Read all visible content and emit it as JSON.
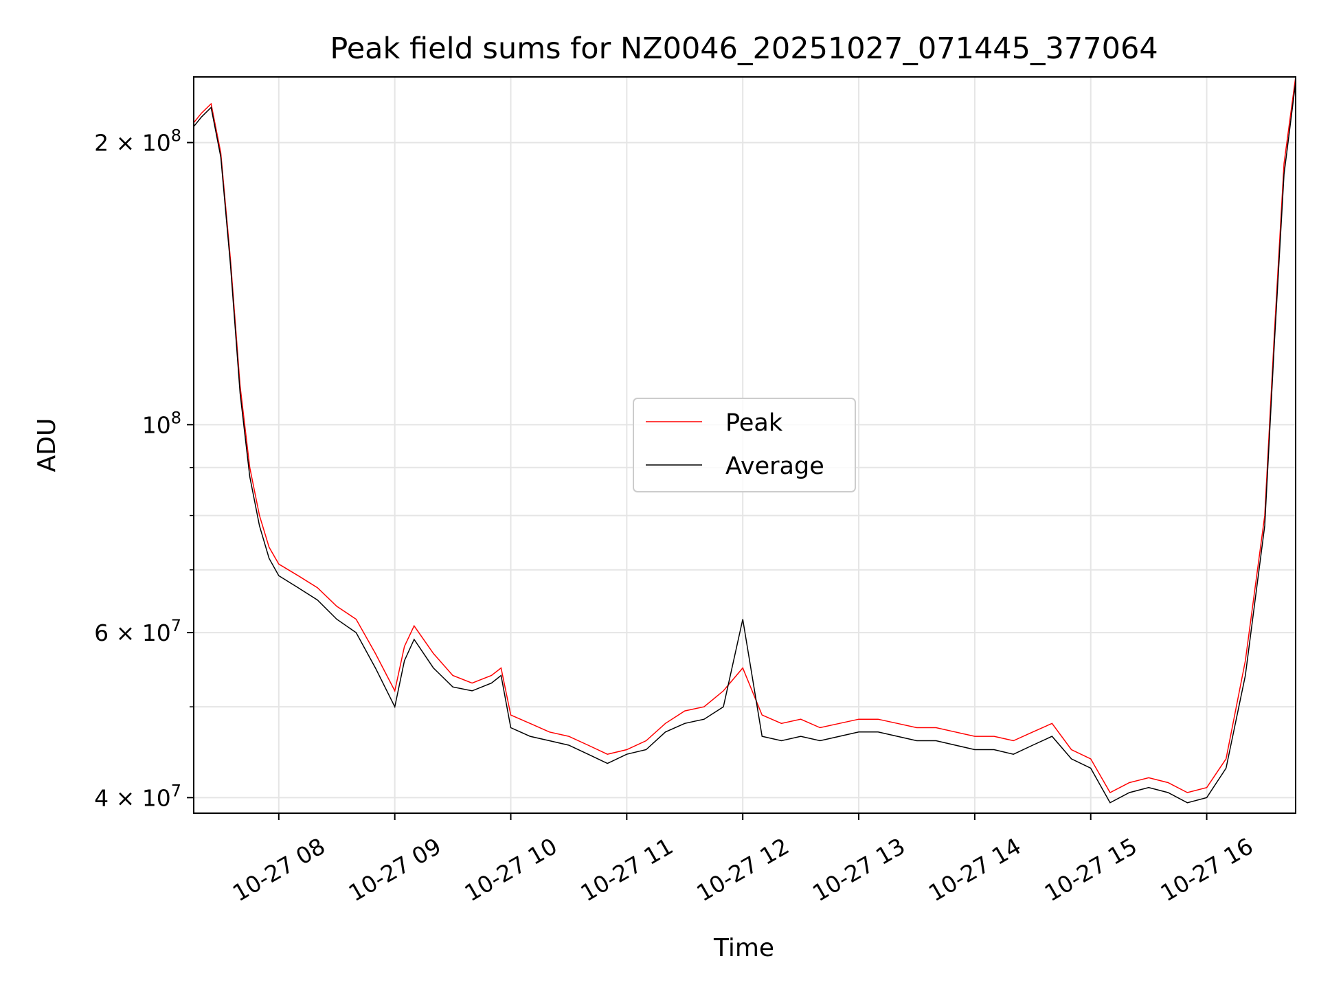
{
  "chart_data": {
    "type": "line",
    "title": "Peak field sums for NZ0046_20251027_071445_377064",
    "xlabel": "Time",
    "ylabel": "ADU",
    "y_scale": "log",
    "ylim": [
      38500000,
      235000000
    ],
    "xlim": [
      "10-27 07:16",
      "10-27 16:46"
    ],
    "x_ticks": [
      "10-27 08",
      "10-27 09",
      "10-27 10",
      "10-27 11",
      "10-27 12",
      "10-27 13",
      "10-27 14",
      "10-27 15",
      "10-27 16"
    ],
    "y_ticks": [
      {
        "value": 40000000,
        "mantissa": "4",
        "exp": "7"
      },
      {
        "value": 60000000,
        "mantissa": "6",
        "exp": "7"
      },
      {
        "value": 100000000,
        "mantissa": "",
        "exp": "8"
      },
      {
        "value": 200000000,
        "mantissa": "2",
        "exp": "8"
      }
    ],
    "grid": true,
    "legend_position": "center",
    "colors": {
      "peak": "#ff0000",
      "average": "#000000"
    },
    "series": [
      {
        "name": "Peak",
        "x": [
          "10-27 07:16",
          "10-27 07:20",
          "10-27 07:25",
          "10-27 07:30",
          "10-27 07:35",
          "10-27 07:40",
          "10-27 07:45",
          "10-27 07:50",
          "10-27 07:55",
          "10-27 08:00",
          "10-27 08:10",
          "10-27 08:20",
          "10-27 08:30",
          "10-27 08:40",
          "10-27 08:50",
          "10-27 09:00",
          "10-27 09:05",
          "10-27 09:10",
          "10-27 09:20",
          "10-27 09:30",
          "10-27 09:40",
          "10-27 09:50",
          "10-27 09:55",
          "10-27 10:00",
          "10-27 10:10",
          "10-27 10:20",
          "10-27 10:30",
          "10-27 10:40",
          "10-27 10:50",
          "10-27 11:00",
          "10-27 11:10",
          "10-27 11:20",
          "10-27 11:30",
          "10-27 11:40",
          "10-27 11:50",
          "10-27 12:00",
          "10-27 12:10",
          "10-27 12:20",
          "10-27 12:30",
          "10-27 12:40",
          "10-27 12:50",
          "10-27 13:00",
          "10-27 13:10",
          "10-27 13:20",
          "10-27 13:30",
          "10-27 13:40",
          "10-27 13:50",
          "10-27 14:00",
          "10-27 14:10",
          "10-27 14:20",
          "10-27 14:30",
          "10-27 14:40",
          "10-27 14:50",
          "10-27 15:00",
          "10-27 15:10",
          "10-27 15:20",
          "10-27 15:30",
          "10-27 15:40",
          "10-27 15:50",
          "10-27 16:00",
          "10-27 16:10",
          "10-27 16:20",
          "10-27 16:30",
          "10-27 16:35",
          "10-27 16:40",
          "10-27 16:46"
        ],
        "y": [
          210000000,
          215000000,
          220000000,
          195000000,
          150000000,
          110000000,
          90000000,
          80000000,
          74000000,
          71000000,
          69000000,
          67000000,
          64000000,
          62000000,
          57000000,
          52000000,
          58000000,
          61000000,
          57000000,
          54000000,
          53000000,
          54000000,
          55000000,
          49000000,
          48000000,
          47000000,
          46500000,
          45500000,
          44500000,
          45000000,
          46000000,
          48000000,
          49500000,
          50000000,
          52000000,
          55000000,
          49000000,
          48000000,
          48500000,
          47500000,
          48000000,
          48500000,
          48500000,
          48000000,
          47500000,
          47500000,
          47000000,
          46500000,
          46500000,
          46000000,
          47000000,
          48000000,
          45000000,
          44000000,
          40500000,
          41500000,
          42000000,
          41500000,
          40500000,
          41000000,
          44000000,
          56000000,
          80000000,
          125000000,
          190000000,
          235000000
        ]
      },
      {
        "name": "Average",
        "x": [
          "10-27 07:16",
          "10-27 07:20",
          "10-27 07:25",
          "10-27 07:30",
          "10-27 07:35",
          "10-27 07:40",
          "10-27 07:45",
          "10-27 07:50",
          "10-27 07:55",
          "10-27 08:00",
          "10-27 08:10",
          "10-27 08:20",
          "10-27 08:30",
          "10-27 08:40",
          "10-27 08:50",
          "10-27 09:00",
          "10-27 09:05",
          "10-27 09:10",
          "10-27 09:20",
          "10-27 09:30",
          "10-27 09:40",
          "10-27 09:50",
          "10-27 09:55",
          "10-27 10:00",
          "10-27 10:10",
          "10-27 10:20",
          "10-27 10:30",
          "10-27 10:40",
          "10-27 10:50",
          "10-27 11:00",
          "10-27 11:10",
          "10-27 11:20",
          "10-27 11:30",
          "10-27 11:40",
          "10-27 11:50",
          "10-27 12:00",
          "10-27 12:10",
          "10-27 12:20",
          "10-27 12:30",
          "10-27 12:40",
          "10-27 12:50",
          "10-27 13:00",
          "10-27 13:10",
          "10-27 13:20",
          "10-27 13:30",
          "10-27 13:40",
          "10-27 13:50",
          "10-27 14:00",
          "10-27 14:10",
          "10-27 14:20",
          "10-27 14:30",
          "10-27 14:40",
          "10-27 14:50",
          "10-27 15:00",
          "10-27 15:10",
          "10-27 15:20",
          "10-27 15:30",
          "10-27 15:40",
          "10-27 15:50",
          "10-27 16:00",
          "10-27 16:10",
          "10-27 16:20",
          "10-27 16:30",
          "10-27 16:35",
          "10-27 16:40",
          "10-27 16:46"
        ],
        "y": [
          208000000,
          213000000,
          218000000,
          193000000,
          148000000,
          108000000,
          88000000,
          78000000,
          72000000,
          69000000,
          67000000,
          65000000,
          62000000,
          60000000,
          55000000,
          50000000,
          56000000,
          59000000,
          55000000,
          52500000,
          52000000,
          53000000,
          54000000,
          47500000,
          46500000,
          46000000,
          45500000,
          44500000,
          43500000,
          44500000,
          45000000,
          47000000,
          48000000,
          48500000,
          50000000,
          62000000,
          46500000,
          46000000,
          46500000,
          46000000,
          46500000,
          47000000,
          47000000,
          46500000,
          46000000,
          46000000,
          45500000,
          45000000,
          45000000,
          44500000,
          45500000,
          46500000,
          44000000,
          43000000,
          39500000,
          40500000,
          41000000,
          40500000,
          39500000,
          40000000,
          43000000,
          54000000,
          78000000,
          122000000,
          185000000,
          232000000
        ]
      }
    ],
    "legend": [
      {
        "label": "Peak",
        "color": "#ff0000"
      },
      {
        "label": "Average",
        "color": "#000000"
      }
    ]
  }
}
